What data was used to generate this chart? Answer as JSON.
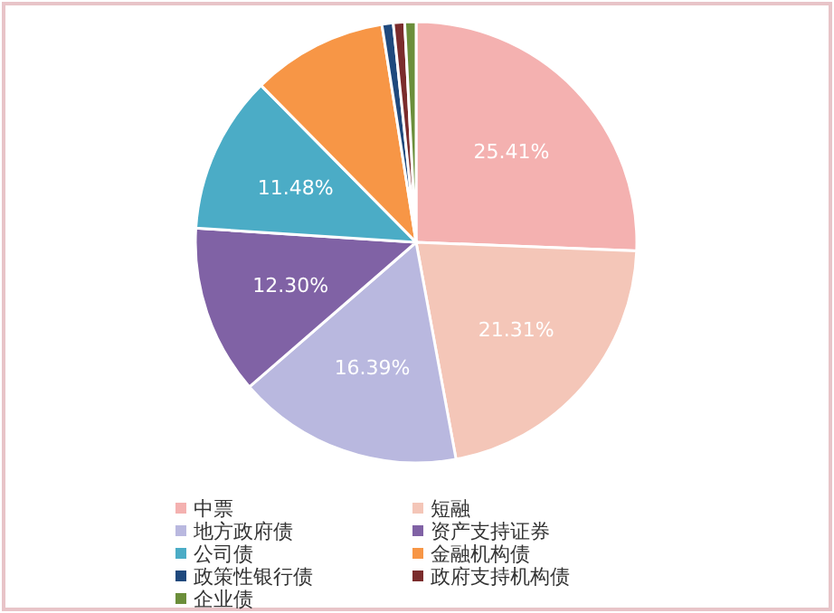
{
  "chart_data": {
    "type": "pie",
    "categories": [
      "中票",
      "短融",
      "地方政府债",
      "资产支持证券",
      "公司债",
      "金融机构债",
      "政策性银行债",
      "政府支持机构债",
      "企业债"
    ],
    "values": [
      25.41,
      21.31,
      16.39,
      12.3,
      11.48,
      9.84,
      0.82,
      0.82,
      0.82
    ],
    "colors": [
      "#f4b1b0",
      "#f4c6b8",
      "#b9b8df",
      "#8062a5",
      "#4bacc6",
      "#f79646",
      "#1f497d",
      "#7b2c2c",
      "#6b8e3a"
    ],
    "value_labels": [
      "25.41%",
      "21.31%",
      "16.39%",
      "12.30%",
      "11.48%",
      null,
      null,
      null,
      null
    ],
    "legend": "bottom"
  }
}
